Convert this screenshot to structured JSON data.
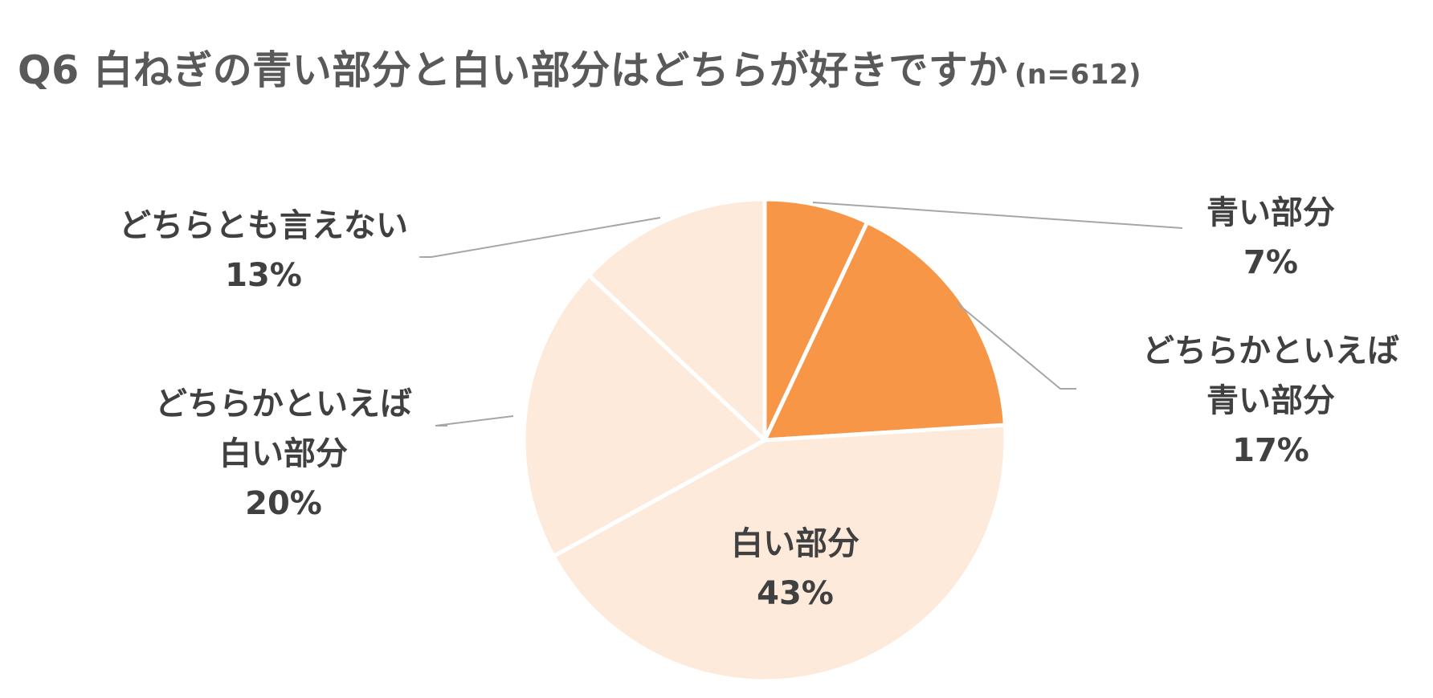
{
  "chart_data": {
    "type": "pie",
    "title": "Q6 白ねぎの青い部分と白い部分はどちらが好きですか",
    "subtitle": "(n=612)",
    "colors": [
      "#F79646",
      "#F79646",
      "#FDEADA",
      "#FDEADA",
      "#FDEADA"
    ],
    "slices": [
      {
        "label_lines": [
          "青い部分"
        ],
        "value": 7,
        "value_label": "7%"
      },
      {
        "label_lines": [
          "どちらかといえば",
          "青い部分"
        ],
        "value": 17,
        "value_label": "17%"
      },
      {
        "label_lines": [
          "白い部分"
        ],
        "value": 43,
        "value_label": "43%"
      },
      {
        "label_lines": [
          "どちらかといえば",
          "白い部分"
        ],
        "value": 20,
        "value_label": "20%"
      },
      {
        "label_lines": [
          "どちらとも言えない"
        ],
        "value": 13,
        "value_label": "13%"
      }
    ]
  }
}
